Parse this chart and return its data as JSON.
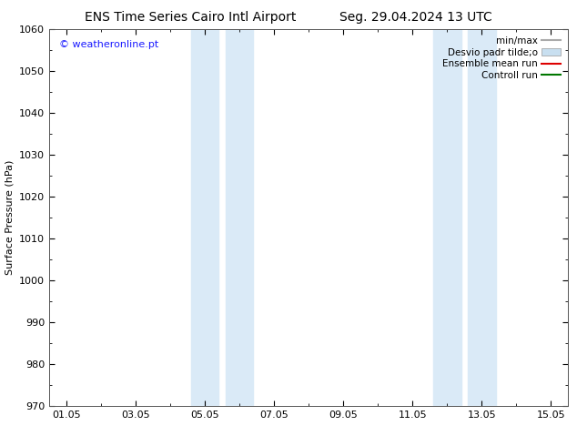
{
  "title_left": "ENS Time Series Cairo Intl Airport",
  "title_right": "Seg. 29.04.2024 13 UTC",
  "ylabel": "Surface Pressure (hPa)",
  "ylim": [
    970,
    1060
  ],
  "yticks": [
    970,
    980,
    990,
    1000,
    1010,
    1020,
    1030,
    1040,
    1050,
    1060
  ],
  "xtick_labels": [
    "01.05",
    "03.05",
    "05.05",
    "07.05",
    "09.05",
    "11.05",
    "13.05",
    "15.05"
  ],
  "xtick_positions": [
    0,
    2,
    4,
    6,
    8,
    10,
    12,
    14
  ],
  "xlim": [
    -0.5,
    14.5
  ],
  "shade_bands": [
    {
      "x_start": 3.6,
      "x_end": 4.4
    },
    {
      "x_start": 4.6,
      "x_end": 5.4
    },
    {
      "x_start": 10.6,
      "x_end": 11.4
    },
    {
      "x_start": 11.6,
      "x_end": 12.4
    }
  ],
  "shade_color": "#daeaf7",
  "copyright_text": "© weatheronline.pt",
  "copyright_color": "#1a1aff",
  "legend_entries": [
    {
      "label": "min/max",
      "color": "#aaaaaa",
      "style": "line"
    },
    {
      "label": "Desvio padr tilde;o",
      "color": "#c8dff0",
      "style": "band"
    },
    {
      "label": "Ensemble mean run",
      "color": "#dd0000",
      "style": "line"
    },
    {
      "label": "Controll run",
      "color": "#007700",
      "style": "line"
    }
  ],
  "bg_color": "#ffffff",
  "plot_bg_color": "#ffffff",
  "title_fontsize": 10,
  "axis_fontsize": 8,
  "tick_fontsize": 8,
  "legend_fontsize": 7.5
}
